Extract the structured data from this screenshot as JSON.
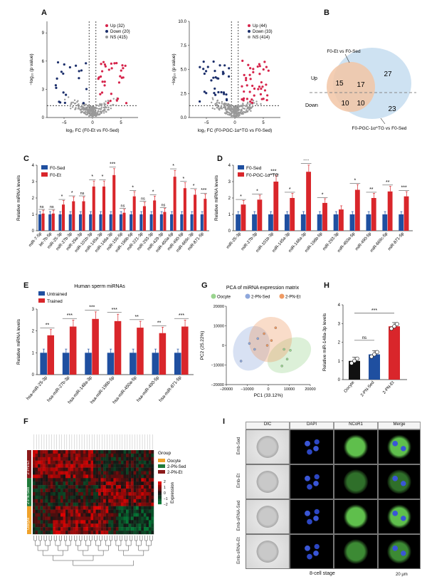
{
  "panel_letters": [
    "A",
    "B",
    "C",
    "D",
    "E",
    "F",
    "G",
    "H",
    "I"
  ],
  "volcano": {
    "ylabel": "−log₁₀ (p value)",
    "left": {
      "xlabel": "log₂ FC (F0-Et vs F0-Sed)",
      "legend": [
        "Up (32)",
        "Down (20)",
        "NS (415)"
      ],
      "yticks": [
        "0",
        "3",
        "6",
        "9"
      ],
      "xticks": [
        "−5",
        "0",
        "5"
      ]
    },
    "right": {
      "xlabel": "log₂ FC (F0-PGC-1α^TG vs F0-Sed)",
      "legend": [
        "Up (44)",
        "Down (33)",
        "NS (414)"
      ],
      "yticks": [
        "0.0",
        "2.5",
        "5.0",
        "7.5",
        "10.0"
      ],
      "xticks": [
        "−5",
        "0",
        "5"
      ]
    },
    "colors": {
      "up": "#d6244b",
      "down": "#1c2f6b",
      "ns": "#999999"
    }
  },
  "venn": {
    "left_title": "F0-Et vs F0-Sed",
    "right_title": "F0-PGC-1α^TG vs F0-Sed",
    "up_label": "Up",
    "down_label": "Down",
    "values": [
      "15",
      "17",
      "27",
      "10",
      "10",
      "23"
    ]
  },
  "chart_data": [
    {
      "type": "bar",
      "title": "",
      "ylabel": "Relative miRNA levels",
      "ylim": [
        0,
        4
      ],
      "yticks": [
        "0",
        "1",
        "2",
        "3",
        "4"
      ],
      "categories": [
        "miR-7-5p",
        "let-7b-5p",
        "miR-25-3p",
        "miR-27b-3p",
        "miR-29a-3p",
        "miR-101b-3p",
        "miR-145a-3p",
        "miR-148a-3p",
        "miR-155-5p",
        "miR-196b-5p",
        "miR-221-3p",
        "miR-293-3p",
        "miR-429-3p",
        "miR-450a-5p",
        "miR-490-5p",
        "miR-669c-3p",
        "miR-871-5p"
      ],
      "series": [
        {
          "name": "F0-Sed",
          "values": [
            1,
            1,
            1,
            1,
            1,
            1,
            1,
            1,
            1,
            1,
            1,
            1,
            1,
            1,
            1,
            1,
            1
          ]
        },
        {
          "name": "F0-Et",
          "values": [
            1.05,
            1.05,
            1.6,
            1.8,
            1.8,
            2.7,
            2.7,
            3.4,
            1.1,
            2.1,
            1.5,
            1.85,
            1.15,
            3.3,
            2.6,
            2.2,
            1.95
          ]
        }
      ],
      "sig": [
        "ns",
        "ns",
        "*",
        "*",
        "ns",
        "*",
        "*",
        "***",
        "ns",
        "*",
        "ns",
        "*",
        "ns",
        "*",
        "*",
        "*",
        "***"
      ],
      "colors": [
        "#1f4fa0",
        "#d9262b"
      ]
    },
    {
      "type": "bar",
      "title": "",
      "ylabel": "Relative miRNA levels",
      "ylim": [
        0,
        4
      ],
      "yticks": [
        "0",
        "1",
        "2",
        "3",
        "4"
      ],
      "categories": [
        "miR-25-3p",
        "miR-27b-3p",
        "miR-101b-3p",
        "miR-145a-3p",
        "miR-148a-3p",
        "miR-196b-5p",
        "miR-293-3p",
        "miR-450a-5p",
        "miR-490-5p",
        "miR-669c-5p",
        "miR-871-5p"
      ],
      "series": [
        {
          "name": "F0-Sed",
          "values": [
            1,
            1,
            1,
            1,
            1,
            1,
            1,
            1,
            1,
            1,
            1
          ]
        },
        {
          "name": "F0-PGC-1α^TG",
          "values": [
            1.6,
            1.9,
            3.0,
            2.0,
            3.6,
            1.7,
            1.3,
            2.5,
            2.0,
            2.4,
            2.1
          ]
        }
      ],
      "sig": [
        "*",
        "*",
        "***",
        "*",
        "***",
        "*",
        "",
        "*",
        "**",
        "**",
        "***"
      ],
      "colors": [
        "#1f4fa0",
        "#d9262b"
      ]
    },
    {
      "type": "bar",
      "title": "Human sperm miRNAs",
      "ylabel": "Relative miRNA levels",
      "ylim": [
        0,
        3
      ],
      "yticks": [
        "0",
        "1",
        "2",
        "3"
      ],
      "categories": [
        "hsa-miR-25-3p",
        "hsa-miR-27b-3p",
        "hsa-miR-148a-3p",
        "hsa-miR-196b-5p",
        "hsa-miR-450a-5p",
        "hsa-miR-490-5p",
        "hsa-miR-871-5p"
      ],
      "series": [
        {
          "name": "Untrained",
          "values": [
            1,
            1,
            1,
            1,
            1,
            1,
            1
          ]
        },
        {
          "name": "Trained",
          "values": [
            1.8,
            2.2,
            2.55,
            2.45,
            2.15,
            1.9,
            2.2
          ]
        }
      ],
      "sig": [
        "**",
        "***",
        "***",
        "***",
        "**",
        "**",
        "***"
      ],
      "colors": [
        "#1f4fa0",
        "#d9262b"
      ]
    },
    {
      "type": "scatter",
      "title": "PCA of miRNA expression matrix",
      "xlabel": "PC1 (33.12%)",
      "ylabel": "PC2 (25.22%)",
      "xlim": [
        -20000,
        20000
      ],
      "ylim": [
        -20000,
        20000
      ],
      "xticks": [
        "−20000",
        "−10000",
        "0",
        "10000",
        "20000"
      ],
      "yticks": [
        "20000",
        "10000",
        "0",
        "−10000",
        "−20000"
      ],
      "series": [
        {
          "name": "Oocyte",
          "color": "#9ad48f",
          "points": [
            [
              7500,
              -2000
            ],
            [
              9000,
              -7000
            ],
            [
              6500,
              -10500
            ],
            [
              10500,
              -2500
            ]
          ]
        },
        {
          "name": "2-PN-Sed",
          "color": "#8fa8dc",
          "points": [
            [
              -9000,
              1000
            ],
            [
              -13000,
              -8000
            ],
            [
              -5000,
              3500
            ],
            [
              -6500,
              -2000
            ]
          ]
        },
        {
          "name": "2-PN-Et",
          "color": "#ef9a63",
          "points": [
            [
              -2000,
              6000
            ],
            [
              3500,
              9000
            ],
            [
              1500,
              2500
            ],
            [
              -500,
              0
            ]
          ]
        }
      ]
    },
    {
      "type": "bar",
      "title": "",
      "ylabel": "Relative miR-148a-3p levels",
      "ylim": [
        0,
        4
      ],
      "yticks": [
        "0",
        "1",
        "2",
        "3",
        "4"
      ],
      "categories": [
        "Oocyte",
        "2-PN-Sed",
        "2-PN-Et"
      ],
      "series": [
        {
          "name": "",
          "values": [
            1.0,
            1.35,
            2.85
          ]
        }
      ],
      "colors": [
        "#111111",
        "#1f4fa0",
        "#d9262b"
      ],
      "comparisons": [
        {
          "pair": [
            "Oocyte",
            "2-PN-Sed"
          ],
          "label": "ns"
        },
        {
          "pair": [
            "Oocyte",
            "2-PN-Et"
          ],
          "label": "***"
        }
      ]
    }
  ],
  "heatmap": {
    "legend_title": "Group",
    "groups": [
      "Oocyte",
      "2-PN-Sed",
      "2-PN-Et"
    ],
    "group_colors": [
      "#f0a22a",
      "#1f7a3a",
      "#8b1a1a"
    ],
    "expression_title": "Expression",
    "scale_ticks": [
      "2",
      "1",
      "0",
      "−1",
      "−2"
    ],
    "row_labels": [
      "2-PN-Et",
      "2-PN-Sed",
      "Oocyte"
    ]
  },
  "microscopy": {
    "columns": [
      "DIC",
      "DAPI",
      "NCoR1",
      "Merge"
    ],
    "rows": [
      "Emb-Sed",
      "Emb-Et",
      "Emb-sRNA-Sed",
      "Emb-sRNA-Et"
    ],
    "footer": "8-cell stage",
    "scale": "20 μm"
  }
}
